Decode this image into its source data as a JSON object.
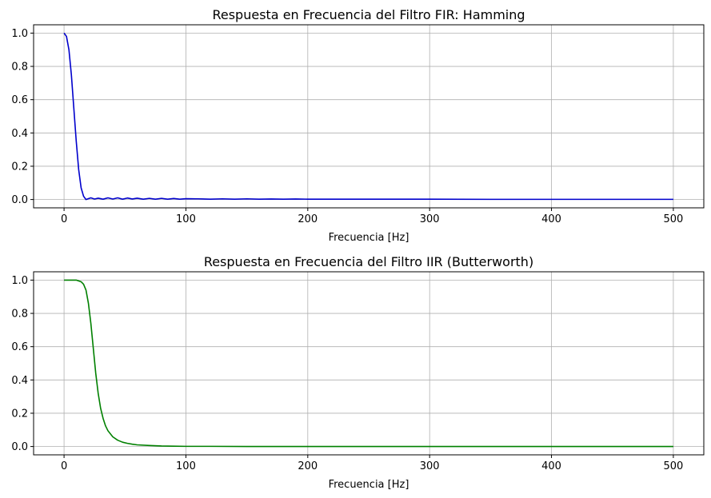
{
  "chart_data": [
    {
      "type": "line",
      "title": "Respuesta en Frecuencia del Filtro FIR: Hamming",
      "xlabel": "Frecuencia [Hz]",
      "ylabel": "",
      "xlim": [
        -25,
        525
      ],
      "ylim": [
        -0.05,
        1.05
      ],
      "xticks": [
        0,
        100,
        200,
        300,
        400,
        500
      ],
      "yticks": [
        0.0,
        0.2,
        0.4,
        0.6,
        0.8,
        1.0
      ],
      "grid": true,
      "series": [
        {
          "color": "#0000cc",
          "x": [
            0,
            2,
            4,
            6,
            8,
            10,
            12,
            14,
            16,
            18,
            20,
            22,
            25,
            28,
            32,
            36,
            40,
            44,
            48,
            52,
            56,
            60,
            65,
            70,
            75,
            80,
            85,
            90,
            95,
            100,
            110,
            120,
            130,
            140,
            150,
            160,
            170,
            180,
            190,
            200,
            250,
            300,
            350,
            400,
            450,
            500
          ],
          "y": [
            1.0,
            0.98,
            0.9,
            0.75,
            0.55,
            0.35,
            0.18,
            0.07,
            0.02,
            0.0,
            0.005,
            0.01,
            0.003,
            0.008,
            0.002,
            0.01,
            0.003,
            0.01,
            0.002,
            0.009,
            0.003,
            0.008,
            0.002,
            0.007,
            0.002,
            0.007,
            0.002,
            0.006,
            0.002,
            0.005,
            0.004,
            0.002,
            0.004,
            0.002,
            0.004,
            0.002,
            0.003,
            0.002,
            0.003,
            0.002,
            0.002,
            0.002,
            0.001,
            0.001,
            0.001,
            0.001
          ]
        }
      ]
    },
    {
      "type": "line",
      "title": "Respuesta en Frecuencia del Filtro IIR (Butterworth)",
      "xlabel": "Frecuencia [Hz]",
      "ylabel": "",
      "xlim": [
        -25,
        525
      ],
      "ylim": [
        -0.05,
        1.05
      ],
      "xticks": [
        0,
        100,
        200,
        300,
        400,
        500
      ],
      "yticks": [
        0.0,
        0.2,
        0.4,
        0.6,
        0.8,
        1.0
      ],
      "grid": true,
      "series": [
        {
          "color": "#008000",
          "x": [
            0,
            5,
            10,
            14,
            16,
            18,
            20,
            22,
            24,
            26,
            28,
            30,
            32,
            34,
            36,
            40,
            44,
            48,
            52,
            56,
            60,
            70,
            80,
            90,
            100,
            120,
            150,
            200,
            300,
            400,
            500
          ],
          "y": [
            1.0,
            1.0,
            1.0,
            0.99,
            0.975,
            0.94,
            0.86,
            0.74,
            0.59,
            0.44,
            0.32,
            0.23,
            0.17,
            0.125,
            0.095,
            0.058,
            0.038,
            0.026,
            0.019,
            0.014,
            0.01,
            0.006,
            0.003,
            0.002,
            0.001,
            0.001,
            0.0,
            0.0,
            0.0,
            0.0,
            0.0
          ]
        }
      ]
    }
  ]
}
